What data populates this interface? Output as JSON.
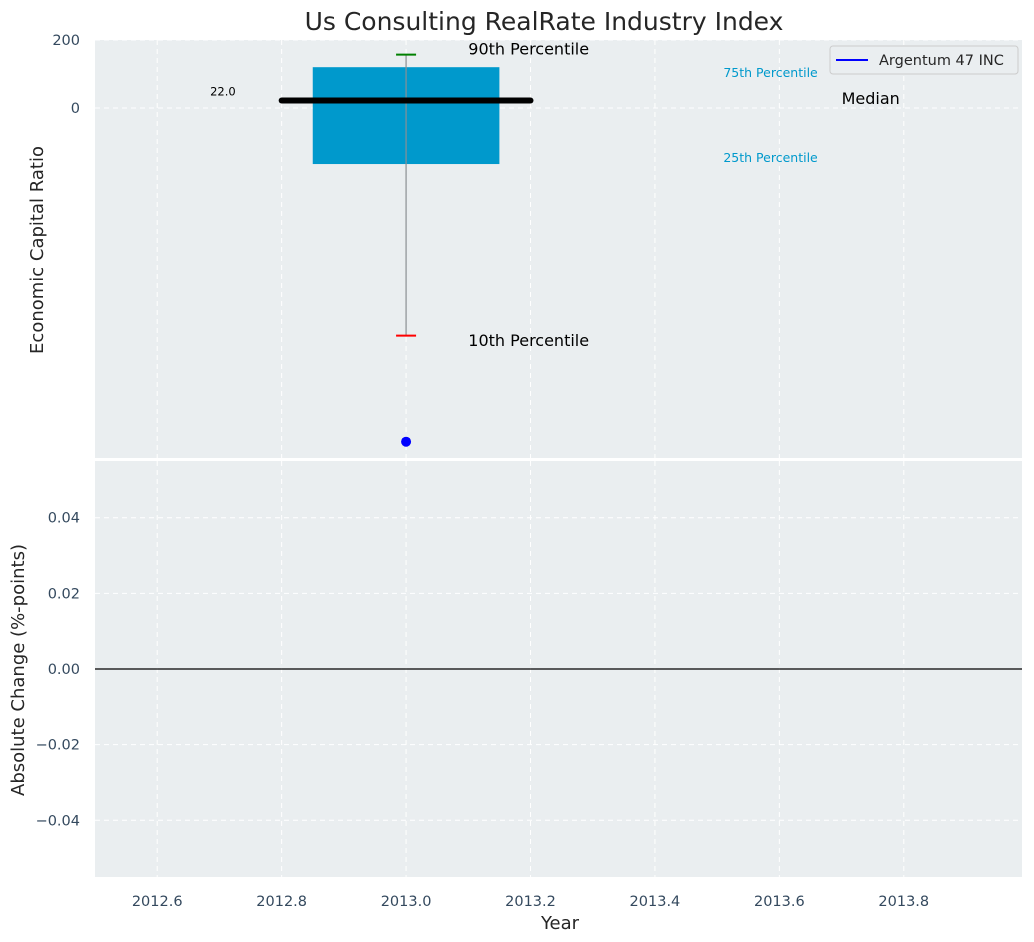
{
  "title": "Us Consulting RealRate Industry Index",
  "colors": {
    "panel_bg": "#eaeef0",
    "box": "#0099cc",
    "median": "#000000",
    "whisker": "#8a8f93",
    "p90_cap": "#008000",
    "p10_cap": "#ff0000",
    "company_point": "#0000ff",
    "zero_line": "#000000"
  },
  "chart_data": [
    {
      "type": "box",
      "panel": "top",
      "ylabel": "Economic Capital Ratio",
      "xlim": [
        2012.5,
        2013.99
      ],
      "ylim": [
        -1030,
        200
      ],
      "yticks": [
        0,
        200
      ],
      "ytick_labels": [
        "0",
        "200"
      ],
      "grid": true,
      "box": {
        "x": 2013.0,
        "box_x_range": [
          2012.85,
          2013.15
        ],
        "p10": -670,
        "p25": -165,
        "median": 22,
        "p75": 120,
        "p90": 157,
        "median_line_x_range": [
          2012.8,
          2013.2
        ]
      },
      "company": {
        "name": "Argentum 47 INC",
        "x": 2013.0,
        "value": -982
      },
      "annotations": [
        {
          "text": "90th Percentile",
          "x": 2013.1,
          "y": 157,
          "style": "big"
        },
        {
          "text": "10th Percentile",
          "x": 2013.1,
          "y": -700,
          "style": "big"
        },
        {
          "text": "75th Percentile",
          "x": 2013.51,
          "y": 91,
          "style": "small"
        },
        {
          "text": "25th Percentile",
          "x": 2013.51,
          "y": -159,
          "style": "small"
        },
        {
          "text": "Median",
          "x": 2013.7,
          "y": 12,
          "style": "big"
        },
        {
          "text": "22.0",
          "x": 2012.685,
          "y": 36,
          "style": "value"
        }
      ],
      "legend": {
        "position": "top-right",
        "entries": [
          "Argentum 47 INC"
        ]
      }
    },
    {
      "type": "line",
      "panel": "bottom",
      "ylabel": "Absolute Change (%-points)",
      "xlabel": "Year",
      "xlim": [
        2012.5,
        2013.99
      ],
      "ylim": [
        -0.055,
        0.055
      ],
      "xticks": [
        2012.6,
        2012.8,
        2013.0,
        2013.2,
        2013.4,
        2013.6,
        2013.8
      ],
      "xtick_labels": [
        "2012.6",
        "2012.8",
        "2013.0",
        "2013.2",
        "2013.4",
        "2013.6",
        "2013.8"
      ],
      "yticks": [
        -0.04,
        -0.02,
        0.0,
        0.02,
        0.04
      ],
      "ytick_labels": [
        "−0.04",
        "−0.02",
        "0.00",
        "0.02",
        "0.04"
      ],
      "grid": true,
      "reference_line": 0.0,
      "series": []
    }
  ]
}
